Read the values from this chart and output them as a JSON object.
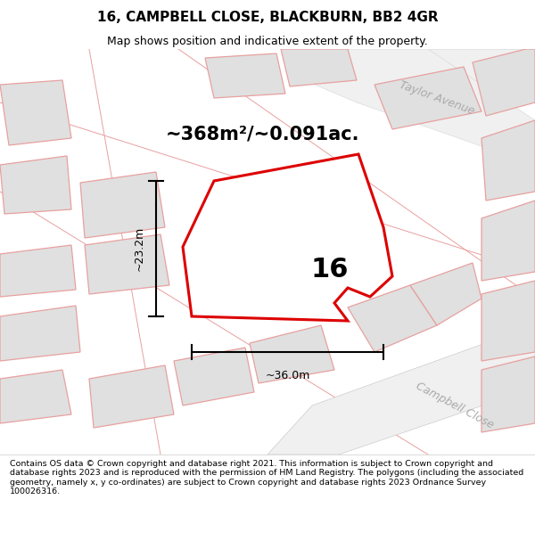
{
  "title": "16, CAMPBELL CLOSE, BLACKBURN, BB2 4GR",
  "subtitle": "Map shows position and indicative extent of the property.",
  "footnote": "Contains OS data © Crown copyright and database right 2021. This information is subject to Crown copyright and database rights 2023 and is reproduced with the permission of HM Land Registry. The polygons (including the associated geometry, namely x, y co-ordinates) are subject to Crown copyright and database rights 2023 Ordnance Survey 100026316.",
  "area_text": "~368m²/~0.091ac.",
  "plot_label": "16",
  "dim_width": "~36.0m",
  "dim_height": "~23.2m",
  "map_bg": "#f7f7f7",
  "plot_fill": "#ffffff",
  "plot_edge": "#dd0000",
  "other_plot_fill": "#e0e0e0",
  "other_plot_edge": "#e8a0a0",
  "road_label_color": "#aaaaaa",
  "title_fontsize": 11,
  "subtitle_fontsize": 9,
  "area_fontsize": 15,
  "label_fontsize": 22,
  "footnote_fontsize": 6.8
}
